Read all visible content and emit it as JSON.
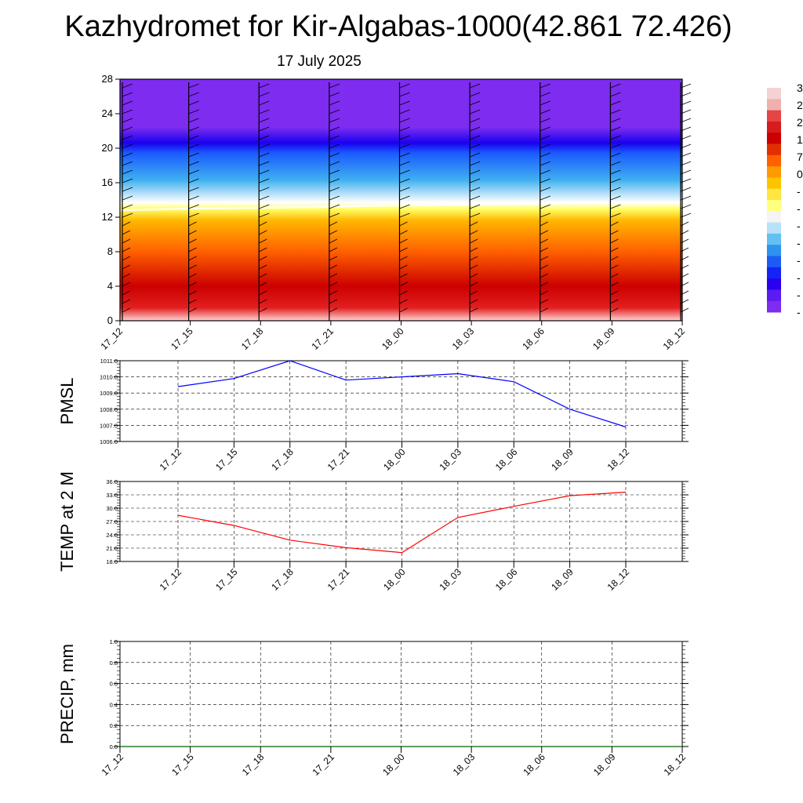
{
  "header": {
    "title": "Kazhydromet for Kir-Algabas-1000(42.861 72.426)",
    "date": "17 July 2025"
  },
  "colorbar": {
    "labels": [
      "3",
      "2",
      "2",
      "1",
      "7",
      "0",
      "-",
      "-",
      "-",
      "-",
      "-",
      "-",
      "-",
      "-"
    ]
  },
  "chart_data": [
    {
      "type": "heatmap",
      "name": "temperature-wind-cross-section",
      "x_ticks": [
        "17_12",
        "17_15",
        "17_18",
        "17_21",
        "18_00",
        "18_03",
        "18_06",
        "18_09",
        "18_12"
      ],
      "y_ticks": [
        0,
        4,
        8,
        12,
        16,
        20,
        24,
        28
      ],
      "ylim": [
        0,
        28
      ],
      "freezing_level": [
        12.8,
        13.0,
        13.1,
        13.2,
        13.4,
        13.5,
        13.6,
        13.7,
        13.7
      ],
      "min_level": 20.6,
      "colors": [
        "#ffd6d6",
        "#e21f1f",
        "#cc0000",
        "#ff6000",
        "#ffb700",
        "#ffff66",
        "#ffffff",
        "#3fb0f0",
        "#1b5cff",
        "#1a00f0",
        "#7d2cf0"
      ]
    },
    {
      "type": "line",
      "name": "PMSL",
      "ylabel": "PMSL",
      "x": [
        "17_12",
        "17_15",
        "17_18",
        "17_21",
        "18_00",
        "18_03",
        "18_06",
        "18_09",
        "18_12"
      ],
      "values": [
        1009.4,
        1009.9,
        1011.0,
        1009.8,
        1010.0,
        1010.2,
        1009.7,
        1008.0,
        1006.9
      ],
      "ylim": [
        1006.0,
        1011.0
      ],
      "y_ticks": [
        "1011.0",
        "1010.0",
        "1009.0",
        "1008.0",
        "1007.0",
        "1006.0"
      ],
      "color": "#0000ff",
      "grid": true
    },
    {
      "type": "line",
      "name": "TEMP at 2 M",
      "ylabel": "TEMP at 2 M",
      "x": [
        "17_12",
        "17_15",
        "17_18",
        "17_21",
        "18_00",
        "18_03",
        "18_06",
        "18_09",
        "18_12"
      ],
      "values": [
        28.4,
        26.1,
        22.8,
        21.1,
        20.0,
        27.9,
        30.4,
        32.8,
        33.6
      ],
      "ylim": [
        18.0,
        36.0
      ],
      "y_ticks": [
        "36.0",
        "33.0",
        "30.0",
        "27.0",
        "24.0",
        "21.0",
        "18.0"
      ],
      "color": "#ff0000",
      "grid": true
    },
    {
      "type": "line",
      "name": "PRECIP, mm",
      "ylabel": "PRECIP, mm",
      "x": [
        "17_12",
        "17_15",
        "17_18",
        "17_21",
        "18_00",
        "18_03",
        "18_06",
        "18_09",
        "18_12"
      ],
      "values": [
        0,
        0,
        0,
        0,
        0,
        0,
        0,
        0,
        0
      ],
      "ylim": [
        0.0,
        1.0
      ],
      "y_ticks": [
        "1.0",
        "0.8",
        "0.6",
        "0.4",
        "0.2",
        "0.0"
      ],
      "color": "#006400",
      "grid": true
    }
  ]
}
